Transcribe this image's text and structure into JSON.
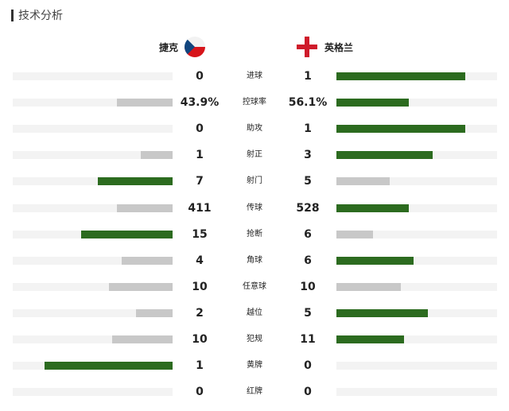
{
  "section": {
    "title": "技术分析"
  },
  "teams": {
    "home": {
      "name": "捷克",
      "flag_icon": "czech-flag-icon"
    },
    "away": {
      "name": "英格兰",
      "flag_icon": "england-flag-icon"
    }
  },
  "colors": {
    "leading_bar": "#2c6b1f",
    "trailing_bar": "#c8c8c8",
    "track": "#f3f3f3"
  },
  "stats": [
    {
      "label": "进球",
      "home": "0",
      "away": "1",
      "home_fill": 0,
      "away_fill": 0.8,
      "home_leads": false
    },
    {
      "label": "控球率",
      "home": "43.9%",
      "away": "56.1%",
      "home_fill": 0.35,
      "away_fill": 0.45,
      "home_leads": false
    },
    {
      "label": "助攻",
      "home": "0",
      "away": "1",
      "home_fill": 0,
      "away_fill": 0.8,
      "home_leads": false
    },
    {
      "label": "射正",
      "home": "1",
      "away": "3",
      "home_fill": 0.2,
      "away_fill": 0.6,
      "home_leads": false
    },
    {
      "label": "射门",
      "home": "7",
      "away": "5",
      "home_fill": 0.47,
      "away_fill": 0.33,
      "home_leads": true
    },
    {
      "label": "传球",
      "home": "411",
      "away": "528",
      "home_fill": 0.35,
      "away_fill": 0.45,
      "home_leads": false
    },
    {
      "label": "抢断",
      "home": "15",
      "away": "6",
      "home_fill": 0.57,
      "away_fill": 0.23,
      "home_leads": true
    },
    {
      "label": "角球",
      "home": "4",
      "away": "6",
      "home_fill": 0.32,
      "away_fill": 0.48,
      "home_leads": false
    },
    {
      "label": "任意球",
      "home": "10",
      "away": "10",
      "home_fill": 0.4,
      "away_fill": 0.4,
      "home_leads": false
    },
    {
      "label": "越位",
      "home": "2",
      "away": "5",
      "home_fill": 0.23,
      "away_fill": 0.57,
      "home_leads": false
    },
    {
      "label": "犯规",
      "home": "10",
      "away": "11",
      "home_fill": 0.38,
      "away_fill": 0.42,
      "home_leads": false
    },
    {
      "label": "黄牌",
      "home": "1",
      "away": "0",
      "home_fill": 0.8,
      "away_fill": 0,
      "home_leads": true
    },
    {
      "label": "红牌",
      "home": "0",
      "away": "0",
      "home_fill": 0,
      "away_fill": 0,
      "home_leads": false
    }
  ]
}
